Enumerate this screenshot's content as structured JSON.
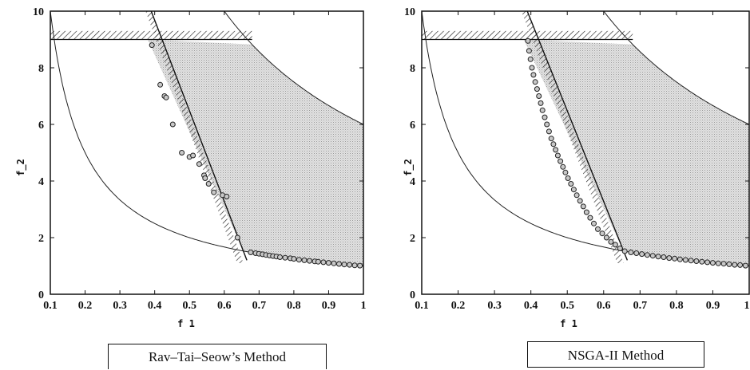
{
  "chart_data": [
    {
      "type": "scatter",
      "caption": "Rav–Tai–Seow’s Method",
      "xlabel": "f 1",
      "ylabel": "f_2",
      "xlim": [
        0.1,
        1
      ],
      "ylim": [
        0,
        10
      ],
      "xticks": [
        "0.1",
        "0.2",
        "0.3",
        "0.4",
        "0.5",
        "0.6",
        "0.7",
        "0.8",
        "0.9",
        "1"
      ],
      "yticks": [
        "0",
        "2",
        "4",
        "6",
        "8",
        "10"
      ],
      "grid": false,
      "series": [
        {
          "points": [
            [
              0.392,
              8.8
            ],
            [
              0.416,
              7.4
            ],
            [
              0.428,
              7.0
            ],
            [
              0.433,
              6.95
            ],
            [
              0.452,
              6.0
            ],
            [
              0.478,
              5.0
            ],
            [
              0.5,
              4.85
            ],
            [
              0.51,
              4.9
            ],
            [
              0.528,
              4.6
            ],
            [
              0.542,
              4.2
            ],
            [
              0.545,
              4.1
            ],
            [
              0.555,
              3.9
            ],
            [
              0.57,
              3.6
            ],
            [
              0.595,
              3.5
            ],
            [
              0.607,
              3.45
            ],
            [
              0.638,
              2.0
            ],
            [
              0.676,
              1.48
            ],
            [
              0.69,
              1.45
            ],
            [
              0.7,
              1.43
            ],
            [
              0.71,
              1.41
            ],
            [
              0.72,
              1.39
            ],
            [
              0.73,
              1.37
            ],
            [
              0.74,
              1.35
            ],
            [
              0.75,
              1.33
            ],
            [
              0.76,
              1.31
            ],
            [
              0.775,
              1.29
            ],
            [
              0.79,
              1.27
            ],
            [
              0.8,
              1.25
            ],
            [
              0.815,
              1.22
            ],
            [
              0.83,
              1.2
            ],
            [
              0.845,
              1.18
            ],
            [
              0.86,
              1.16
            ],
            [
              0.87,
              1.15
            ],
            [
              0.885,
              1.13
            ],
            [
              0.9,
              1.11
            ],
            [
              0.915,
              1.09
            ],
            [
              0.93,
              1.07
            ],
            [
              0.945,
              1.05
            ],
            [
              0.96,
              1.04
            ],
            [
              0.975,
              1.02
            ],
            [
              0.99,
              1.01
            ]
          ]
        }
      ]
    },
    {
      "type": "scatter",
      "caption": "NSGA-II  Method",
      "xlabel": "f 1",
      "ylabel": "f_2",
      "xlim": [
        0.1,
        1
      ],
      "ylim": [
        0,
        10
      ],
      "xticks": [
        "0.1",
        "0.2",
        "0.3",
        "0.4",
        "0.5",
        "0.6",
        "0.7",
        "0.8",
        "0.9",
        "1"
      ],
      "yticks": [
        "0",
        "2",
        "4",
        "6",
        "8",
        "10"
      ],
      "grid": false,
      "series": [
        {
          "points": [
            [
              0.392,
              8.95
            ],
            [
              0.395,
              8.6
            ],
            [
              0.399,
              8.3
            ],
            [
              0.403,
              8.0
            ],
            [
              0.407,
              7.75
            ],
            [
              0.412,
              7.5
            ],
            [
              0.417,
              7.25
            ],
            [
              0.422,
              7.0
            ],
            [
              0.427,
              6.75
            ],
            [
              0.432,
              6.5
            ],
            [
              0.438,
              6.25
            ],
            [
              0.444,
              6.0
            ],
            [
              0.45,
              5.75
            ],
            [
              0.456,
              5.5
            ],
            [
              0.462,
              5.3
            ],
            [
              0.468,
              5.1
            ],
            [
              0.474,
              4.9
            ],
            [
              0.481,
              4.7
            ],
            [
              0.488,
              4.5
            ],
            [
              0.495,
              4.3
            ],
            [
              0.502,
              4.1
            ],
            [
              0.51,
              3.9
            ],
            [
              0.518,
              3.7
            ],
            [
              0.526,
              3.5
            ],
            [
              0.535,
              3.3
            ],
            [
              0.544,
              3.1
            ],
            [
              0.553,
              2.9
            ],
            [
              0.563,
              2.7
            ],
            [
              0.573,
              2.5
            ],
            [
              0.584,
              2.3
            ],
            [
              0.596,
              2.15
            ],
            [
              0.608,
              2.0
            ],
            [
              0.62,
              1.85
            ],
            [
              0.632,
              1.75
            ],
            [
              0.645,
              1.62
            ],
            [
              0.658,
              1.52
            ],
            [
              0.675,
              1.48
            ],
            [
              0.69,
              1.45
            ],
            [
              0.705,
              1.42
            ],
            [
              0.72,
              1.39
            ],
            [
              0.735,
              1.36
            ],
            [
              0.75,
              1.33
            ],
            [
              0.765,
              1.31
            ],
            [
              0.78,
              1.28
            ],
            [
              0.795,
              1.26
            ],
            [
              0.81,
              1.23
            ],
            [
              0.825,
              1.21
            ],
            [
              0.84,
              1.19
            ],
            [
              0.855,
              1.17
            ],
            [
              0.87,
              1.15
            ],
            [
              0.885,
              1.13
            ],
            [
              0.9,
              1.11
            ],
            [
              0.915,
              1.09
            ],
            [
              0.93,
              1.08
            ],
            [
              0.945,
              1.06
            ],
            [
              0.96,
              1.04
            ],
            [
              0.975,
              1.03
            ],
            [
              0.99,
              1.01
            ]
          ]
        }
      ]
    }
  ]
}
